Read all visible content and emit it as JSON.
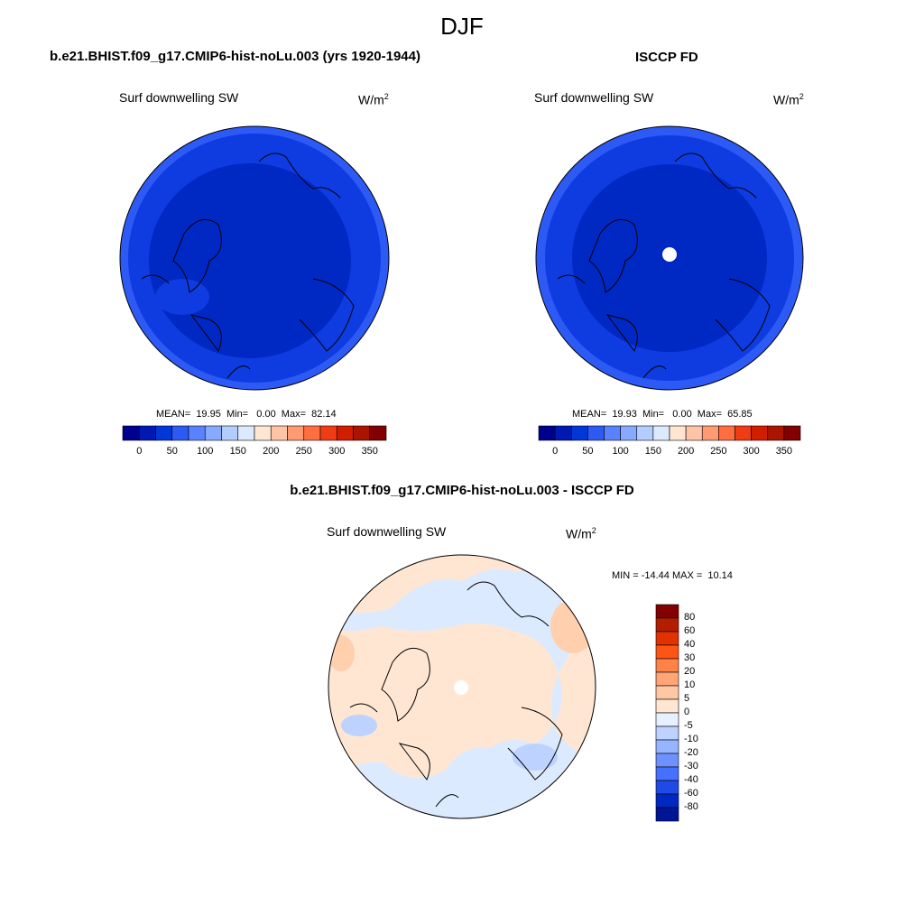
{
  "figure": {
    "season": "DJF"
  },
  "panels": {
    "model": {
      "title": "b.e21.BHIST.f09_g17.CMIP6-hist-noLu.003 (yrs 1920-1944)",
      "variable": "Surf downwelling SW",
      "units": "W/m",
      "units_exp": "2",
      "stats": "MEAN=  19.95  Min=   0.00  Max=  82.14"
    },
    "obs": {
      "title": "ISCCP FD",
      "variable": "Surf downwelling SW",
      "units": "W/m",
      "units_exp": "2",
      "stats": "MEAN=  19.93  Min=   0.00  Max=  65.85"
    },
    "diff": {
      "title": "b.e21.BHIST.f09_g17.CMIP6-hist-noLu.003 - ISCCP FD",
      "variable": "Surf downwelling SW",
      "units": "W/m",
      "units_exp": "2",
      "stats": "MIN = -14.44 MAX =  10.14"
    }
  },
  "colorbar_abs": {
    "tick_labels": [
      "0",
      "50",
      "100",
      "150",
      "200",
      "250",
      "300",
      "350"
    ],
    "colors": [
      "#00008f",
      "#0019b4",
      "#0037d7",
      "#2d5af5",
      "#5a82ff",
      "#87aaff",
      "#b4cdff",
      "#dceaff",
      "#ffe6d2",
      "#ffc3a5",
      "#ff9b73",
      "#ff6e41",
      "#f03c14",
      "#d21e00",
      "#aa1400",
      "#820000"
    ]
  },
  "colorbar_diff": {
    "tick_labels": [
      "80",
      "60",
      "40",
      "30",
      "20",
      "10",
      "5",
      "0",
      "-5",
      "-10",
      "-20",
      "-30",
      "-40",
      "-60",
      "-80"
    ],
    "colors": [
      "#820000",
      "#b41e00",
      "#e13200",
      "#ff5514",
      "#ff8246",
      "#ffa578",
      "#ffc8a5",
      "#ffe6d2",
      "#e6f0ff",
      "#bed2ff",
      "#96b4ff",
      "#6e91ff",
      "#4670ff",
      "#1e4be6",
      "#0028c3",
      "#001496"
    ]
  },
  "map_colors": {
    "deep_blue": "#0028c3",
    "mid_blue": "#0f3ce0",
    "edge_blue": "#2d5af5",
    "pale_blue": "#dceaff",
    "pale_orange": "#ffe6d2",
    "light_orange": "#ffcfae"
  }
}
